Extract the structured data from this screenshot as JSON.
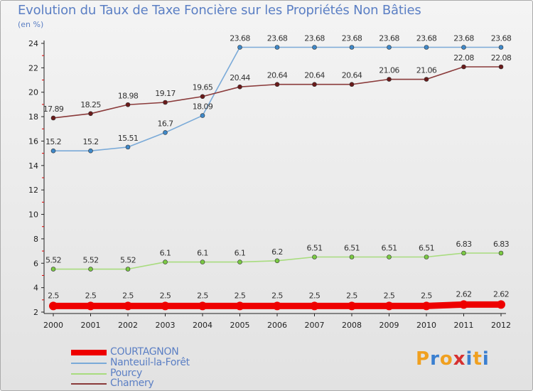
{
  "title": "Evolution du Taux de Taxe Foncière sur les Propriétés Non Bâties",
  "unit_label": "(en %)",
  "logo": {
    "letters": [
      "P",
      "r",
      "o",
      "x",
      "i",
      "t",
      "i"
    ],
    "colors": [
      "#f0a020",
      "#3a7fd0",
      "#f0a020",
      "#d63030",
      "#3a7fd0",
      "#f0a020",
      "#3a7fd0"
    ]
  },
  "chart_data": {
    "type": "line",
    "title": "Evolution du Taux de Taxe Foncière sur les Propriétés Non Bâties",
    "ylabel": "(en %)",
    "x": [
      "2000",
      "2001",
      "2002",
      "2003",
      "2004",
      "2005",
      "2006",
      "2007",
      "2008",
      "2009",
      "2010",
      "2011",
      "2012"
    ],
    "ylim": [
      2,
      24
    ],
    "yticks": [
      2,
      4,
      6,
      8,
      10,
      12,
      14,
      16,
      18,
      20,
      22,
      24
    ],
    "grid": false,
    "legend_position": "bottom-left",
    "series": [
      {
        "name": "COURTAGNON",
        "color": "#ee0000",
        "marker": "#ee0000",
        "values": [
          2.5,
          2.5,
          2.5,
          2.5,
          2.5,
          2.5,
          2.5,
          2.5,
          2.5,
          2.5,
          2.5,
          2.62,
          2.62
        ],
        "labels": [
          "2.5",
          "2.5",
          "2.5",
          "2.5",
          "2.5",
          "2.5",
          "2.5",
          "2.5",
          "2.5",
          "2.5",
          "2.5",
          "2.62",
          "2.62"
        ]
      },
      {
        "name": "Nanteuil-la-Forêt",
        "color": "#7aaad8",
        "marker": "#3f88c8",
        "values": [
          15.2,
          15.2,
          15.51,
          16.7,
          18.09,
          23.68,
          23.68,
          23.68,
          23.68,
          23.68,
          23.68,
          23.68,
          23.68
        ],
        "labels": [
          "15.2",
          "15.2",
          "15.51",
          "16.7",
          "18.09",
          "23.68",
          "23.68",
          "23.68",
          "23.68",
          "23.68",
          "23.68",
          "23.68",
          "23.68"
        ]
      },
      {
        "name": "Pourcy",
        "color": "#a8dc7e",
        "marker": "#7ac943",
        "values": [
          5.52,
          5.52,
          5.52,
          6.1,
          6.1,
          6.1,
          6.2,
          6.51,
          6.51,
          6.51,
          6.51,
          6.83,
          6.83
        ],
        "labels": [
          "5.52",
          "5.52",
          "5.52",
          "6.1",
          "6.1",
          "6.1",
          "6.2",
          "6.51",
          "6.51",
          "6.51",
          "6.51",
          "6.83",
          "6.83"
        ]
      },
      {
        "name": "Chamery",
        "color": "#8a3a3a",
        "marker": "#6a1a1a",
        "values": [
          17.89,
          18.25,
          18.98,
          19.17,
          19.65,
          20.44,
          20.64,
          20.64,
          20.64,
          21.06,
          21.06,
          22.08,
          22.08
        ],
        "labels": [
          "17.89",
          "18.25",
          "18.98",
          "19.17",
          "19.65",
          "20.44",
          "20.64",
          "20.64",
          "20.64",
          "21.06",
          "21.06",
          "22.08",
          "22.08"
        ]
      }
    ]
  }
}
